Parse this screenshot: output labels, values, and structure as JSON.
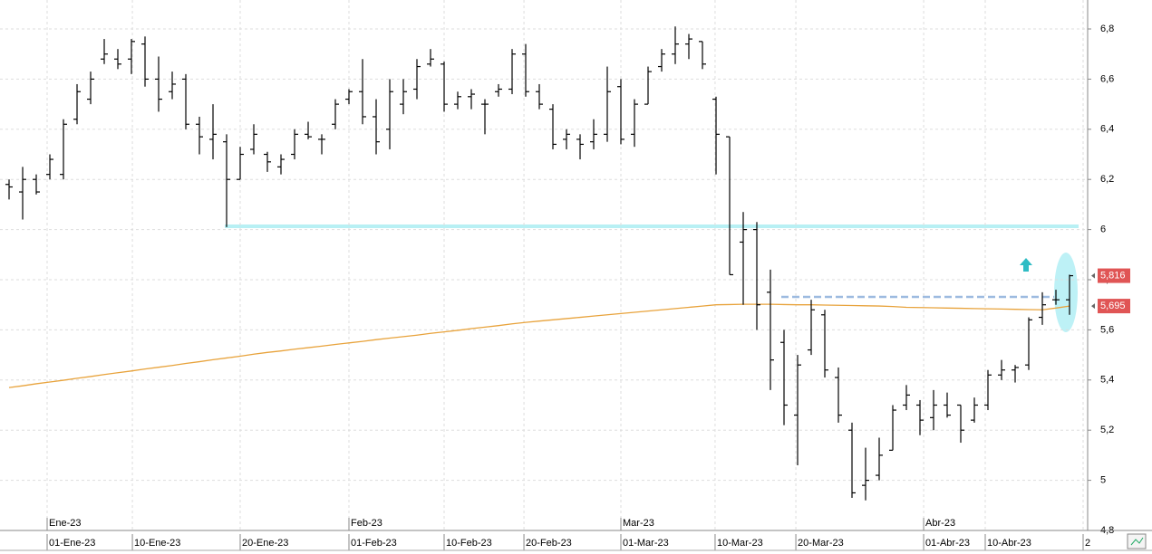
{
  "chart_data": {
    "type": "ohlc",
    "xlim": [
      -0.667,
      79.333
    ],
    "ylim": [
      4.8,
      6.8
    ],
    "yticks": [
      {
        "value": 4.8,
        "label": "4,8"
      },
      {
        "value": 5,
        "label": "5"
      },
      {
        "value": 5.2,
        "label": "5,2"
      },
      {
        "value": 5.4,
        "label": "5,4"
      },
      {
        "value": 5.6,
        "label": "5,6"
      },
      {
        "value": 5.8,
        "label": "5,8"
      },
      {
        "value": 6,
        "label": "6"
      },
      {
        "value": 6.2,
        "label": "6,2"
      },
      {
        "value": 6.4,
        "label": "6,4"
      },
      {
        "value": 6.6,
        "label": "6,6"
      },
      {
        "value": 6.8,
        "label": "6,8"
      }
    ],
    "xticks": [
      {
        "value": 2.8,
        "label": "01-Ene-23"
      },
      {
        "value": 9.07,
        "label": "10-Ene-23"
      },
      {
        "value": 17,
        "label": "20-Ene-23"
      },
      {
        "value": 25,
        "label": "01-Feb-23"
      },
      {
        "value": 32,
        "label": "10-Feb-23"
      },
      {
        "value": 37.87,
        "label": "20-Feb-23"
      },
      {
        "value": 45,
        "label": "01-Mar-23"
      },
      {
        "value": 51.93,
        "label": "10-Mar-23"
      },
      {
        "value": 57.87,
        "label": "20-Mar-23"
      },
      {
        "value": 67.27,
        "label": "01-Abr-23"
      },
      {
        "value": 71.8,
        "label": "10-Abr-23"
      },
      {
        "value": 79,
        "label": "2"
      }
    ],
    "month_ticks": [
      {
        "value": 2.8,
        "label": "Ene-23"
      },
      {
        "value": 25,
        "label": "Feb-23"
      },
      {
        "value": 45,
        "label": "Mar-23"
      },
      {
        "value": 67.27,
        "label": "Abr-23"
      }
    ],
    "grid": true,
    "color": "#000000",
    "open": [
      6.18,
      6.15,
      6.2,
      6.22,
      6.22,
      6.44,
      6.52,
      6.68,
      6.68,
      6.68,
      6.74,
      6.6,
      6.55,
      6.6,
      6.42,
      6.36,
      6.35,
      6.2,
      6.32,
      6.3,
      6.25,
      6.3,
      6.38,
      6.36,
      6.42,
      6.52,
      6.55,
      6.45,
      6.4,
      6.5,
      6.56,
      6.66,
      6.66,
      6.5,
      6.53,
      6.5,
      6.55,
      6.56,
      6.7,
      6.55,
      6.48,
      6.36,
      6.36,
      6.35,
      6.38,
      6.57,
      6.38,
      6.5,
      6.65,
      6.7,
      6.74,
      6.75,
      6.52,
      6.37,
      5.95,
      6.0,
      5.75,
      5.55,
      5.26,
      5.52,
      5.66,
      5.41,
      5.2,
      4.98,
      5.02,
      5.12,
      5.3,
      5.3,
      5.25,
      5.3,
      5.3,
      5.24,
      5.3,
      5.42,
      5.44,
      5.46,
      5.65,
      5.72,
      5.72
    ],
    "high": [
      6.2,
      6.25,
      6.22,
      6.3,
      6.44,
      6.58,
      6.63,
      6.76,
      6.72,
      6.76,
      6.77,
      6.69,
      6.63,
      6.62,
      6.45,
      6.5,
      6.38,
      6.33,
      6.42,
      6.31,
      6.3,
      6.4,
      6.43,
      6.38,
      6.52,
      6.56,
      6.68,
      6.52,
      6.6,
      6.6,
      6.68,
      6.72,
      6.67,
      6.55,
      6.56,
      6.52,
      6.58,
      6.72,
      6.74,
      6.58,
      6.5,
      6.4,
      6.38,
      6.44,
      6.65,
      6.6,
      6.52,
      6.65,
      6.72,
      6.81,
      6.78,
      6.75,
      6.53,
      6.37,
      6.07,
      6.03,
      5.84,
      5.6,
      5.5,
      5.72,
      5.68,
      5.45,
      5.23,
      5.13,
      5.17,
      5.3,
      5.38,
      5.32,
      5.36,
      5.35,
      5.3,
      5.33,
      5.44,
      5.48,
      5.46,
      5.65,
      5.75,
      5.76,
      5.82
    ],
    "low": [
      6.12,
      6.04,
      6.14,
      6.2,
      6.2,
      6.42,
      6.5,
      6.66,
      6.64,
      6.62,
      6.57,
      6.47,
      6.52,
      6.4,
      6.3,
      6.28,
      6.01,
      6.2,
      6.3,
      6.23,
      6.22,
      6.28,
      6.36,
      6.3,
      6.4,
      6.5,
      6.42,
      6.3,
      6.32,
      6.46,
      6.52,
      6.65,
      6.47,
      6.48,
      6.48,
      6.38,
      6.53,
      6.54,
      6.53,
      6.48,
      6.32,
      6.32,
      6.28,
      6.32,
      6.35,
      6.34,
      6.33,
      6.5,
      6.63,
      6.66,
      6.68,
      6.64,
      6.22,
      5.82,
      5.7,
      5.6,
      5.36,
      5.22,
      5.06,
      5.5,
      5.41,
      5.23,
      4.93,
      4.92,
      5.0,
      5.12,
      5.28,
      5.18,
      5.2,
      5.25,
      5.15,
      5.23,
      5.28,
      5.4,
      5.39,
      5.44,
      5.62,
      5.7,
      5.66
    ],
    "close": [
      6.17,
      6.2,
      6.15,
      6.28,
      6.42,
      6.55,
      6.6,
      6.7,
      6.66,
      6.75,
      6.6,
      6.52,
      6.58,
      6.42,
      6.37,
      6.38,
      6.2,
      6.3,
      6.38,
      6.27,
      6.28,
      6.38,
      6.37,
      6.36,
      6.5,
      6.55,
      6.45,
      6.35,
      6.55,
      6.55,
      6.65,
      6.68,
      6.5,
      6.53,
      6.54,
      6.5,
      6.56,
      6.7,
      6.55,
      6.5,
      6.34,
      6.38,
      6.34,
      6.38,
      6.55,
      6.36,
      6.5,
      6.63,
      6.7,
      6.74,
      6.76,
      6.66,
      6.38,
      5.82,
      6.0,
      5.7,
      5.48,
      5.3,
      5.46,
      5.68,
      5.44,
      5.26,
      4.95,
      5.0,
      5.1,
      5.28,
      5.34,
      5.24,
      5.3,
      5.26,
      5.2,
      5.3,
      5.42,
      5.44,
      5.45,
      5.64,
      5.7,
      5.72,
      5.816
    ],
    "moving_average": {
      "color": "#e8a33c",
      "values": [
        5.37,
        5.377,
        5.385,
        5.392,
        5.399,
        5.407,
        5.414,
        5.422,
        5.429,
        5.436,
        5.444,
        5.451,
        5.458,
        5.466,
        5.473,
        5.481,
        5.488,
        5.495,
        5.503,
        5.51,
        5.516,
        5.523,
        5.529,
        5.535,
        5.542,
        5.548,
        5.554,
        5.561,
        5.567,
        5.573,
        5.579,
        5.586,
        5.592,
        5.598,
        5.605,
        5.611,
        5.617,
        5.624,
        5.63,
        5.635,
        5.64,
        5.645,
        5.65,
        5.655,
        5.66,
        5.665,
        5.67,
        5.675,
        5.68,
        5.685,
        5.69,
        5.695,
        5.7,
        5.701,
        5.702,
        5.702,
        5.702,
        5.701,
        5.7,
        5.7,
        5.699,
        5.698,
        5.697,
        5.696,
        5.695,
        5.693,
        5.69,
        5.689,
        5.688,
        5.687,
        5.686,
        5.685,
        5.684,
        5.683,
        5.682,
        5.681,
        5.68,
        5.687,
        5.695
      ]
    },
    "price_markers": [
      {
        "value": 5.816,
        "label": "5,816",
        "color": "#e05555"
      },
      {
        "value": 5.695,
        "label": "5,695",
        "color": "#e05555"
      }
    ]
  }
}
